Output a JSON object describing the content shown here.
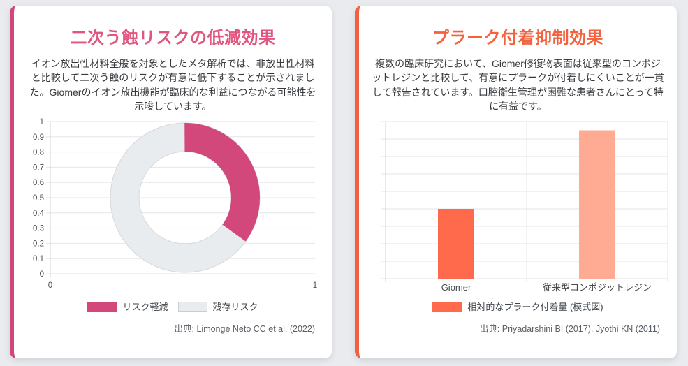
{
  "page": {
    "background_color": "#e9ebee"
  },
  "left_card": {
    "accent_color": "#cf4879",
    "title": "二次う蝕リスクの低減効果",
    "title_color": "#e0567e",
    "description": "イオン放出性材料全般を対象としたメタ解析では、非放出性材料と比較して二次う蝕のリスクが有意に低下することが示されました。Giomerのイオン放出機能が臨床的な利益につながる可能性を示唆しています。",
    "legend": [
      {
        "label": "リスク軽減",
        "color": "#d3487a"
      },
      {
        "label": "残存リスク",
        "color": "#e9ecef"
      }
    ],
    "source": "出典: Limonge Neto CC et al. (2022)"
  },
  "right_card": {
    "accent_color": "#f2603f",
    "title": "プラーク付着抑制効果",
    "title_color": "#f4613d",
    "description": "複数の臨床研究において、Giomer修復物表面は従来型のコンポジットレジンと比較して、有意にプラークが付着しにくいことが一貫して報告されています。口腔衛生管理が困難な患者さんにとって特に有益です。",
    "legend": [
      {
        "label": "相対的なプラーク付着量 (模式図)",
        "color": "#ff6a4d"
      }
    ],
    "source": "出典: Priyadarshini BI (2017), Jyothi KN (2011)"
  },
  "chart_data": [
    {
      "type": "pie",
      "style": "doughnut",
      "title": "二次う蝕リスクの低減効果",
      "labels": [
        "リスク軽減",
        "残存リスク"
      ],
      "values": [
        0.35,
        0.65
      ],
      "colors": [
        "#d3487a",
        "#e9ecef"
      ],
      "cutout_ratio": 0.61,
      "start_angle": "top",
      "direction": "clockwise",
      "legend_position": "bottom",
      "axis_overlay": {
        "grid": true,
        "ylim": [
          0,
          1
        ],
        "xlim": [
          0,
          1
        ],
        "y_ticks": [
          "1",
          "0.9",
          "0.8",
          "0.7",
          "0.6",
          "0.5",
          "0.4",
          "0.3",
          "0.2",
          "0.1",
          "0"
        ],
        "x_ticks": [
          "0",
          "1"
        ]
      }
    },
    {
      "type": "bar",
      "title": "プラーク付着抑制効果",
      "categories": [
        "Giomer",
        "従来型コンポジットレジン"
      ],
      "values": [
        0.4,
        0.85
      ],
      "series_label": "相対的なプラーク付着量 (模式図)",
      "colors": [
        "#ff6a4d",
        "#ffab94"
      ],
      "ylim": [
        0,
        0.9
      ],
      "grid": true,
      "y_tick_labels_visible": false,
      "legend_position": "bottom"
    }
  ]
}
